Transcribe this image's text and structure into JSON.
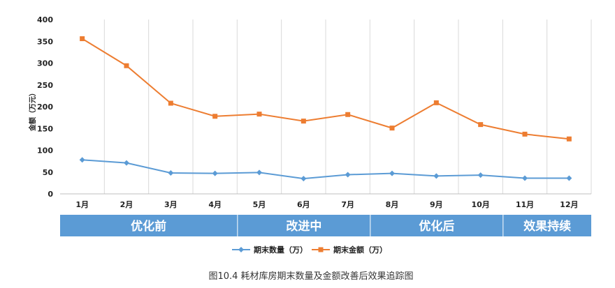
{
  "chart_data": {
    "type": "line",
    "title": "",
    "caption": "图10.4 耗材库房期末数量及金额改善后效果追踪图",
    "xlabel": "",
    "ylabel": "金额（万元）",
    "ylim": [
      0,
      400
    ],
    "yticks": [
      0,
      50,
      100,
      150,
      200,
      250,
      300,
      350,
      400
    ],
    "grid": "vertical",
    "legend_position": "bottom",
    "categories": [
      "1月",
      "2月",
      "3月",
      "4月",
      "5月",
      "6月",
      "7月",
      "8月",
      "9月",
      "10月",
      "11月",
      "12月"
    ],
    "series": [
      {
        "name": "期末数量（万）",
        "color": "#5b9bd5",
        "marker": "diamond",
        "values": [
          78,
          71,
          48,
          47,
          49,
          35,
          44,
          47,
          41,
          43,
          36,
          36
        ]
      },
      {
        "name": "期末金额（万）",
        "color": "#ed7d31",
        "marker": "square",
        "values": [
          356,
          294,
          208,
          178,
          183,
          167,
          182,
          151,
          209,
          159,
          137,
          126
        ]
      }
    ],
    "phases": [
      {
        "label": "优化前",
        "from_month": 1,
        "to_month": 4
      },
      {
        "label": "改进中",
        "from_month": 5,
        "to_month": 7
      },
      {
        "label": "优化后",
        "from_month": 8,
        "to_month": 10
      },
      {
        "label": "效果持续",
        "from_month": 11,
        "to_month": 12
      }
    ],
    "phase_color": "#5b9bd5"
  }
}
